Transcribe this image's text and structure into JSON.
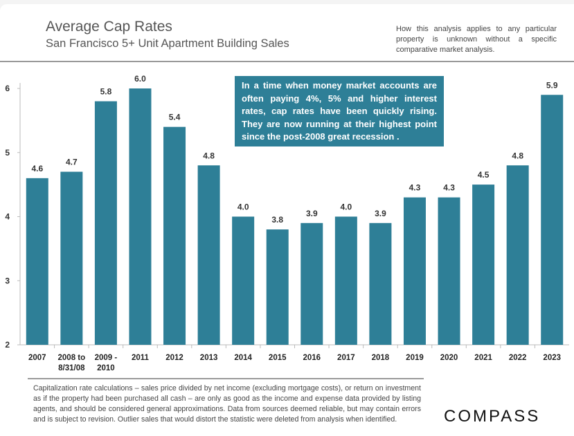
{
  "header": {
    "title": "Average Cap Rates",
    "subtitle": "San Francisco 5+ Unit Apartment Building Sales",
    "disclaimer": "How this analysis applies to any particular property is unknown without a specific comparative market analysis."
  },
  "annotation": "In a time when money market accounts are often paying 4%, 5% and higher interest rates, cap rates have been quickly rising. They are now running at their highest point since the post-2008 great recession .",
  "footer": "Capitalization rate calculations – sales price divided by net income (excluding mortgage costs), or return on investment as if the property had been purchased all cash – are only as good as the income and expense data provided by listing agents, and should be considered general approximations. Data from sources deemed reliable, but may contain errors and is subject to revision. Outlier sales that would distort the statistic were deleted from analysis when identified.",
  "logo": "COMPASS",
  "chart_data": {
    "type": "bar",
    "title": "Average Cap Rates",
    "categories": [
      "2007",
      "2008 to\n8/31/08",
      "2009 -\n2010",
      "2011",
      "2012",
      "2013",
      "2014",
      "2015",
      "2016",
      "2017",
      "2018",
      "2019",
      "2020",
      "2021",
      "2022",
      "2023"
    ],
    "values": [
      4.6,
      4.7,
      5.8,
      6.0,
      5.4,
      4.8,
      4.0,
      3.8,
      3.9,
      4.0,
      3.9,
      4.3,
      4.3,
      4.5,
      4.8,
      5.9
    ],
    "value_labels": [
      "4.6",
      "4.7",
      "5.8",
      "6.0",
      "5.4",
      "4.8",
      "4.0",
      "3.8",
      "3.9",
      "4.0",
      "3.9",
      "4.3",
      "4.3",
      "4.5",
      "4.8",
      "5.9"
    ],
    "yticks": [
      "2",
      "3",
      "4",
      "5",
      "6"
    ],
    "ylim": [
      2,
      6
    ],
    "grid": "vertical category separators",
    "bar_color": "#2e7f97"
  }
}
